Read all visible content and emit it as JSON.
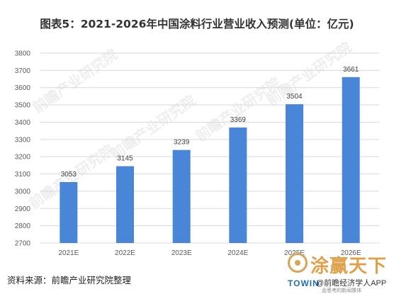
{
  "title": "图表5：2021-2026年中国涂料行业营业收入预测(单位：亿元)",
  "source": "资料来源：前瞻产业研究院整理",
  "watermark": "前瞻产业研究院",
  "brand": {
    "name": "涂赢天下",
    "en": "TOWIN",
    "account": "@前瞻经济学人APP",
    "sub": "会思考的新闻媒体"
  },
  "colors": {
    "bar": "#4a86d8",
    "grid": "#d9d9d9",
    "axis_text": "#595959"
  },
  "chart_data": {
    "type": "bar",
    "title": "图表5：2021-2026年中国涂料行业营业收入预测(单位：亿元)",
    "categories": [
      "2021E",
      "2022E",
      "2023E",
      "2024E",
      "2025E",
      "2026E"
    ],
    "values": [
      3053,
      3145,
      3239,
      3369,
      3504,
      3661
    ],
    "ylim": [
      2700,
      3800
    ],
    "yticks": [
      2700,
      2800,
      2900,
      3000,
      3100,
      3200,
      3300,
      3400,
      3500,
      3600,
      3700,
      3800
    ],
    "xlabel": "",
    "ylabel": "",
    "grid": true,
    "legend": "none"
  }
}
